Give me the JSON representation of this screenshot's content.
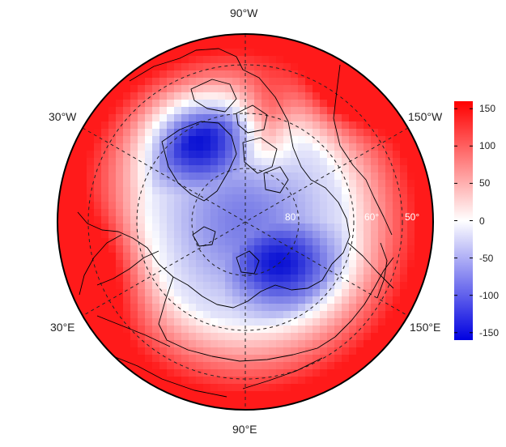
{
  "map": {
    "projection": "north-polar-stereographic",
    "fill_variable_colors": {
      "low": "#0b12d4",
      "mid": "#ffffff",
      "high": "#ff1a1a"
    },
    "longitude_labels": {
      "top": "90°W",
      "upper_left": "30°W",
      "upper_right": "150°W",
      "lower_left": "30°E",
      "lower_right": "150°E",
      "bottom": "90°E"
    },
    "latitude_labels": [
      "80°",
      "60°",
      "50°"
    ]
  },
  "colorbar": {
    "range": [
      -160,
      160
    ],
    "ticks": [
      "150",
      "100",
      "50",
      "0",
      "-50",
      "-100",
      "-150"
    ],
    "tick_values": [
      150,
      100,
      50,
      0,
      -50,
      -100,
      -150
    ]
  }
}
